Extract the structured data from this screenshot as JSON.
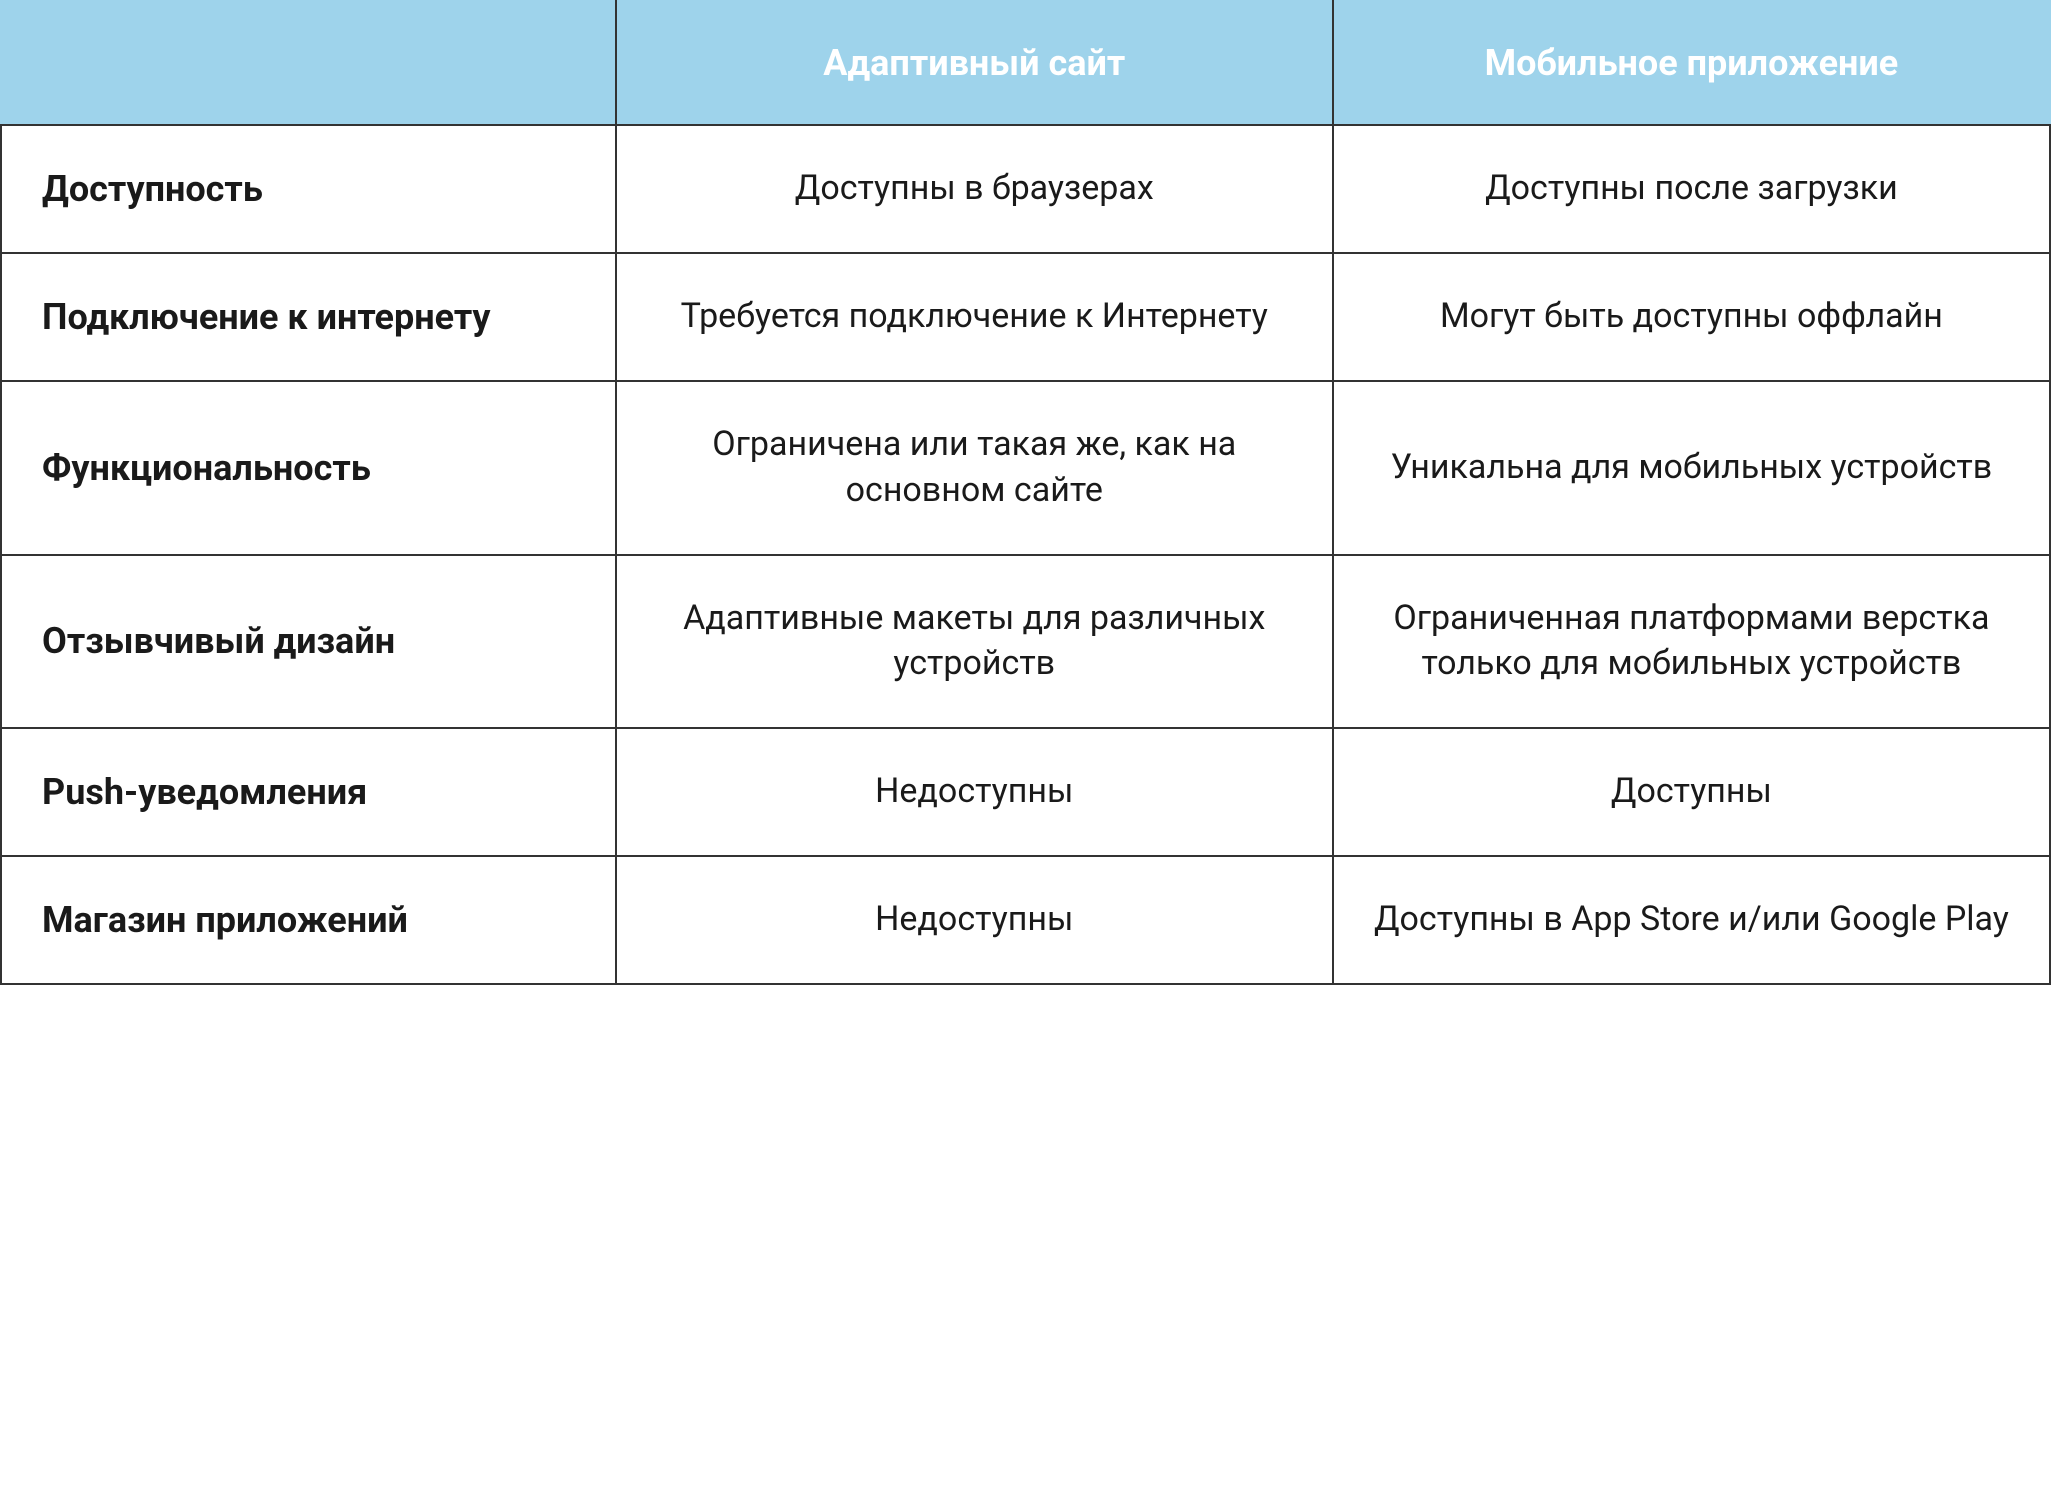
{
  "table": {
    "type": "table",
    "header_bg_color": "#9ed3eb",
    "header_text_color": "#ffffff",
    "border_color": "#333333",
    "body_text_color": "#1a1a1a",
    "body_bg_color": "#ffffff",
    "header_fontsize": 36,
    "rowlabel_fontsize": 36,
    "cell_fontsize": 34,
    "column_widths_pct": [
      30,
      35,
      35
    ],
    "columns": [
      "",
      "Адаптивный сайт",
      "Мобильное приложение"
    ],
    "rows": [
      {
        "label": "Доступность",
        "cells": [
          "Доступны в браузерах",
          "Доступны после загрузки"
        ]
      },
      {
        "label": "Подключение к интернету",
        "cells": [
          "Требуется подключение к Интернету",
          "Могут быть доступны оффлайн"
        ]
      },
      {
        "label": "Функциональность",
        "cells": [
          "Ограничена или такая же, как на основном сайте",
          "Уникальна для мобильных устройств"
        ]
      },
      {
        "label": "Отзывчивый дизайн",
        "cells": [
          "Адаптивные макеты для различных устройств",
          "Ограниченная платформами верстка только для мобильных устройств"
        ]
      },
      {
        "label": "Push-уведомления",
        "cells": [
          "Недоступны",
          "Доступны"
        ]
      },
      {
        "label": "Магазин приложений",
        "cells": [
          "Недоступны",
          "Доступны в App Store и/или Google Play"
        ]
      }
    ]
  }
}
